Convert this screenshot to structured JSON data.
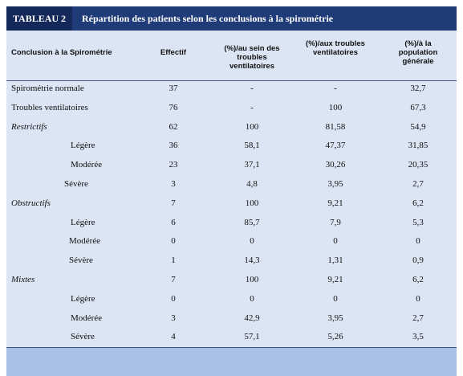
{
  "header": {
    "label": "TABLEAU 2",
    "title": "Répartition des patients selon les conclusions à la spirométrie"
  },
  "table": {
    "columns": [
      "Conclusion à la Spirométrie",
      "Effectif",
      "(%)/au sein des troubles ventilatoires",
      "(%)/aux troubles ventilatoires",
      "(%)/à la population générale"
    ],
    "rows": [
      [
        "Spirométrie normale",
        "37",
        "-",
        "-",
        "32,7"
      ],
      [
        "Troubles ventilatoires",
        "76",
        "-",
        "100",
        "67,3"
      ],
      [
        "Restrictifs",
        "62",
        "100",
        "81,58",
        "54,9"
      ],
      [
        "Légère",
        "36",
        "58,1",
        "47,37",
        "31,85"
      ],
      [
        "Modérée",
        "23",
        "37,1",
        "30,26",
        "20,35"
      ],
      [
        "Sévère",
        "3",
        "4,8",
        "3,95",
        "2,7"
      ],
      [
        "Obstructifs",
        "7",
        "100",
        "9,21",
        "6,2"
      ],
      [
        "Légère",
        "6",
        "85,7",
        "7,9",
        "5,3"
      ],
      [
        "Modérée",
        "0",
        "0",
        "0",
        "0"
      ],
      [
        "Sévère",
        "1",
        "14,3",
        "1,31",
        "0,9"
      ],
      [
        "Mixtes",
        "7",
        "100",
        "9,21",
        "6,2"
      ],
      [
        "Légère",
        "0",
        "0",
        "0",
        "0"
      ],
      [
        "Modérée",
        "3",
        "42,9",
        "3,95",
        "2,7"
      ],
      [
        "Sévère",
        "4",
        "57,1",
        "5,26",
        "3,5"
      ]
    ]
  }
}
